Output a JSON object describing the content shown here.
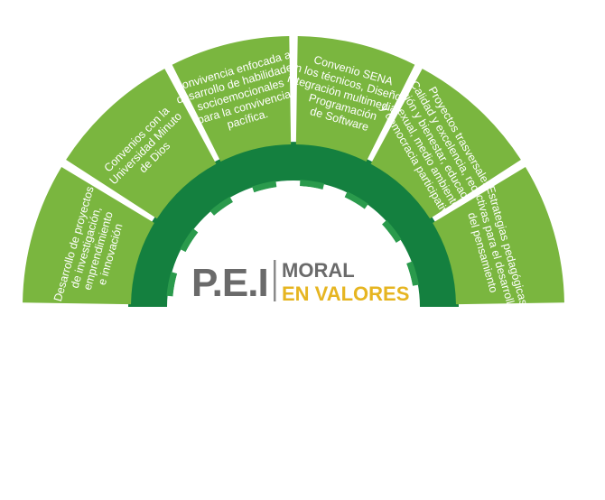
{
  "colors": {
    "segment": "#7ab63f",
    "segment_shade": "#6aa334",
    "ring_dark": "#14803f",
    "ring_light": "#2a9a4c",
    "text_gray": "#6a6a6a",
    "text_yellow": "#e6b521"
  },
  "logo": {
    "pei": "P.E.I",
    "moral": "MORAL",
    "en_valores": "EN VALORES"
  },
  "segments": [
    {
      "lines": [
        "Desarrollo de proyectos",
        "de investigación,",
        "emprendimiento",
        "e innovación"
      ]
    },
    {
      "lines": [
        "Convenios con la",
        "Universidad Minuto",
        "de Dios"
      ]
    },
    {
      "lines": [
        "Convivencia enfocada al",
        "desarrollo de habilidades",
        "socioemocionales",
        "para la convivencia",
        "pacífica."
      ]
    },
    {
      "lines": [
        "Convenio SENA",
        "en los técnicos, Diseño e",
        "integración multimedia y",
        "Programación",
        "de Software"
      ]
    },
    {
      "lines": [
        "Proyectos trasversales:",
        "Calidad y excelencia, recrea-",
        "ción y bienestar, educación",
        "sexual, medio ambiente,",
        "y democracia participativa."
      ]
    },
    {
      "lines": [
        "Estrategias pedagógicas",
        "activas para el desarrollo",
        "del pensamiento"
      ]
    }
  ]
}
